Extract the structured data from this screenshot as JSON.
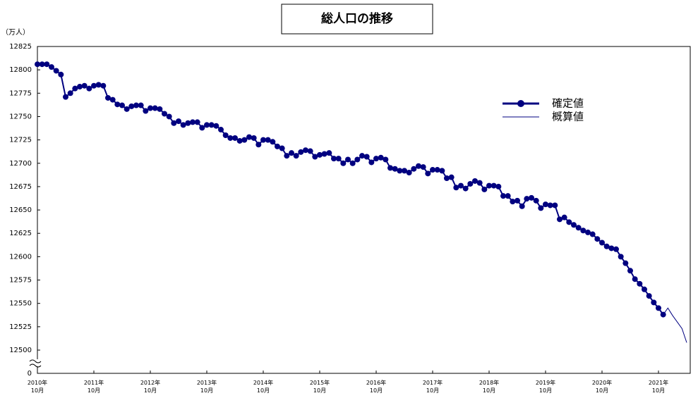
{
  "chart_data": {
    "type": "line",
    "title": "総人口の推移",
    "y_unit_label": "（万人）",
    "categories": [
      "2010年\n10月",
      null,
      null,
      null,
      null,
      null,
      null,
      null,
      null,
      null,
      null,
      null,
      "2011年\n10月",
      null,
      null,
      null,
      null,
      null,
      null,
      null,
      null,
      null,
      null,
      null,
      "2012年\n10月",
      null,
      null,
      null,
      null,
      null,
      null,
      null,
      null,
      null,
      null,
      null,
      "2013年\n10月",
      null,
      null,
      null,
      null,
      null,
      null,
      null,
      null,
      null,
      null,
      null,
      "2014年\n10月",
      null,
      null,
      null,
      null,
      null,
      null,
      null,
      null,
      null,
      null,
      null,
      "2015年\n10月",
      null,
      null,
      null,
      null,
      null,
      null,
      null,
      null,
      null,
      null,
      null,
      "2016年\n10月",
      null,
      null,
      null,
      null,
      null,
      null,
      null,
      null,
      null,
      null,
      null,
      "2017年\n10月",
      null,
      null,
      null,
      null,
      null,
      null,
      null,
      null,
      null,
      null,
      null,
      "2018年\n10月",
      null,
      null,
      null,
      null,
      null,
      null,
      null,
      null,
      null,
      null,
      null,
      "2019年\n10月",
      null,
      null,
      null,
      null,
      null,
      null,
      null,
      null,
      null,
      null,
      null,
      "2020年\n10月",
      null,
      null,
      null,
      null,
      null,
      null,
      null,
      null,
      null,
      null,
      null,
      "2021年\n10月",
      null,
      null,
      null,
      null,
      null,
      null
    ],
    "series": [
      {
        "name": "確定値",
        "color": "#000080",
        "markers": true,
        "values": [
          12806,
          12806,
          12806,
          12803,
          12799,
          12795,
          12771,
          12775,
          12780,
          12782,
          12783,
          12780,
          12783,
          12784,
          12783,
          12770,
          12768,
          12763,
          12762,
          12758,
          12761,
          12762,
          12762,
          12756,
          12759,
          12759,
          12758,
          12753,
          12750,
          12743,
          12745,
          12741,
          12743,
          12744,
          12744,
          12738,
          12741,
          12741,
          12740,
          12736,
          12730,
          12727,
          12727,
          12724,
          12725,
          12728,
          12727,
          12720,
          12725,
          12725,
          12723,
          12718,
          12716,
          12708,
          12711,
          12708,
          12712,
          12714,
          12713,
          12707,
          12709,
          12710,
          12711,
          12705,
          12705,
          12700,
          12704,
          12700,
          12704,
          12708,
          12707,
          12701,
          12705,
          12706,
          12704,
          12695,
          12694,
          12692,
          12692,
          12690,
          12694,
          12697,
          12696,
          12689,
          12693,
          12693,
          12692,
          12684,
          12685,
          12674,
          12676,
          12673,
          12678,
          12681,
          12679,
          12672,
          12676,
          12676,
          12675,
          12665,
          12665,
          12659,
          12660,
          12654,
          12662,
          12663,
          12660,
          12652,
          12656,
          12655,
          12655,
          12640,
          12642,
          12637,
          12634,
          12631,
          12628,
          12626,
          12624,
          12619,
          12615,
          12611,
          12609,
          12608,
          12600,
          12593,
          12585,
          12576,
          12571,
          12565,
          12558,
          12551,
          12545,
          12538,
          null,
          null,
          null,
          null,
          null
        ]
      },
      {
        "name": "概算値",
        "color": "#000080",
        "markers": false,
        "values": [
          null,
          null,
          null,
          null,
          null,
          null,
          null,
          null,
          null,
          null,
          null,
          null,
          null,
          null,
          null,
          null,
          null,
          null,
          null,
          null,
          null,
          null,
          null,
          null,
          null,
          null,
          null,
          null,
          null,
          null,
          null,
          null,
          null,
          null,
          null,
          null,
          null,
          null,
          null,
          null,
          null,
          null,
          null,
          null,
          null,
          null,
          null,
          null,
          null,
          null,
          null,
          null,
          null,
          null,
          null,
          null,
          null,
          null,
          null,
          null,
          null,
          null,
          null,
          null,
          null,
          null,
          null,
          null,
          null,
          null,
          null,
          null,
          null,
          null,
          null,
          null,
          null,
          null,
          null,
          null,
          null,
          null,
          null,
          null,
          null,
          null,
          null,
          null,
          null,
          null,
          null,
          null,
          null,
          null,
          null,
          null,
          null,
          null,
          null,
          null,
          null,
          null,
          null,
          null,
          null,
          null,
          null,
          null,
          null,
          null,
          null,
          null,
          null,
          null,
          null,
          null,
          null,
          null,
          null,
          null,
          null,
          null,
          null,
          null,
          null,
          null,
          null,
          null,
          null,
          null,
          null,
          null,
          null,
          12538,
          12545,
          12537,
          12530,
          12523,
          12508
        ]
      }
    ],
    "ylim": [
      12500,
      12825
    ],
    "yticks": [
      12500,
      12525,
      12550,
      12575,
      12600,
      12625,
      12650,
      12675,
      12700,
      12725,
      12750,
      12775,
      12800,
      12825
    ],
    "y_break_tick": 0,
    "grid": false
  }
}
